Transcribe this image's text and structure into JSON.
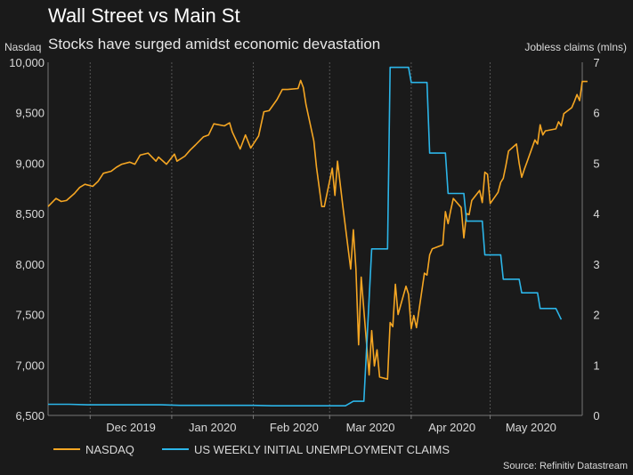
{
  "chart_data": {
    "type": "line",
    "title": "Wall Street vs Main St",
    "subtitle": "Stocks have surged amidst economic devastation",
    "y_left_label": "Nasdaq",
    "y_right_label": "Jobless claims (mlns)",
    "y_left_lim": [
      6500,
      10000
    ],
    "y_right_lim": [
      0,
      7
    ],
    "x_range": [
      "2019-11-15",
      "2020-06-05"
    ],
    "y_left_ticks": [
      "6,500",
      "7,000",
      "7,500",
      "8,000",
      "8,500",
      "9,000",
      "9,500",
      "10,000"
    ],
    "y_right_ticks": [
      "0",
      "1",
      "2",
      "3",
      "4",
      "5",
      "6",
      "7"
    ],
    "x_ticks": [
      {
        "date": "2019-12-01",
        "label": "Dec 2019"
      },
      {
        "date": "2020-01-01",
        "label": "Jan 2020"
      },
      {
        "date": "2020-02-01",
        "label": "Feb 2020"
      },
      {
        "date": "2020-03-01",
        "label": "Mar 2020"
      },
      {
        "date": "2020-04-01",
        "label": "Apr 2020"
      },
      {
        "date": "2020-05-01",
        "label": "May 2020"
      }
    ],
    "grid": "vertical",
    "series": [
      {
        "name": "NASDAQ",
        "axis": "left",
        "color": "#f5a623",
        "points": [
          [
            "2019-11-15",
            8570
          ],
          [
            "2019-11-18",
            8650
          ],
          [
            "2019-11-20",
            8620
          ],
          [
            "2019-11-22",
            8630
          ],
          [
            "2019-11-25",
            8700
          ],
          [
            "2019-11-27",
            8760
          ],
          [
            "2019-11-29",
            8790
          ],
          [
            "2019-12-02",
            8770
          ],
          [
            "2019-12-04",
            8820
          ],
          [
            "2019-12-06",
            8900
          ],
          [
            "2019-12-09",
            8920
          ],
          [
            "2019-12-11",
            8960
          ],
          [
            "2019-12-13",
            8990
          ],
          [
            "2019-12-16",
            9010
          ],
          [
            "2019-12-18",
            8990
          ],
          [
            "2019-12-20",
            9080
          ],
          [
            "2019-12-23",
            9100
          ],
          [
            "2019-12-26",
            9020
          ],
          [
            "2019-12-27",
            9060
          ],
          [
            "2019-12-30",
            8990
          ],
          [
            "2020-01-02",
            9090
          ],
          [
            "2020-01-03",
            9020
          ],
          [
            "2020-01-06",
            9070
          ],
          [
            "2020-01-08",
            9130
          ],
          [
            "2020-01-10",
            9180
          ],
          [
            "2020-01-13",
            9260
          ],
          [
            "2020-01-15",
            9280
          ],
          [
            "2020-01-17",
            9390
          ],
          [
            "2020-01-21",
            9370
          ],
          [
            "2020-01-23",
            9400
          ],
          [
            "2020-01-24",
            9310
          ],
          [
            "2020-01-27",
            9140
          ],
          [
            "2020-01-29",
            9280
          ],
          [
            "2020-01-31",
            9150
          ],
          [
            "2020-02-03",
            9270
          ],
          [
            "2020-02-05",
            9510
          ],
          [
            "2020-02-07",
            9520
          ],
          [
            "2020-02-10",
            9630
          ],
          [
            "2020-02-12",
            9730
          ],
          [
            "2020-02-14",
            9730
          ],
          [
            "2020-02-18",
            9740
          ],
          [
            "2020-02-19",
            9820
          ],
          [
            "2020-02-20",
            9750
          ],
          [
            "2020-02-21",
            9580
          ],
          [
            "2020-02-24",
            9220
          ],
          [
            "2020-02-25",
            8960
          ],
          [
            "2020-02-27",
            8570
          ],
          [
            "2020-02-28",
            8570
          ],
          [
            "2020-03-02",
            8950
          ],
          [
            "2020-03-03",
            8680
          ],
          [
            "2020-03-04",
            9020
          ],
          [
            "2020-03-06",
            8580
          ],
          [
            "2020-03-09",
            7950
          ],
          [
            "2020-03-10",
            8340
          ],
          [
            "2020-03-11",
            7950
          ],
          [
            "2020-03-12",
            7200
          ],
          [
            "2020-03-13",
            7870
          ],
          [
            "2020-03-16",
            6900
          ],
          [
            "2020-03-17",
            7340
          ],
          [
            "2020-03-18",
            6990
          ],
          [
            "2020-03-19",
            7150
          ],
          [
            "2020-03-20",
            6880
          ],
          [
            "2020-03-23",
            6860
          ],
          [
            "2020-03-24",
            7420
          ],
          [
            "2020-03-25",
            7380
          ],
          [
            "2020-03-26",
            7800
          ],
          [
            "2020-03-27",
            7500
          ],
          [
            "2020-03-30",
            7780
          ],
          [
            "2020-03-31",
            7700
          ],
          [
            "2020-04-01",
            7360
          ],
          [
            "2020-04-02",
            7490
          ],
          [
            "2020-04-03",
            7370
          ],
          [
            "2020-04-06",
            7910
          ],
          [
            "2020-04-07",
            7890
          ],
          [
            "2020-04-08",
            8090
          ],
          [
            "2020-04-09",
            8150
          ],
          [
            "2020-04-13",
            8190
          ],
          [
            "2020-04-14",
            8520
          ],
          [
            "2020-04-15",
            8400
          ],
          [
            "2020-04-16",
            8530
          ],
          [
            "2020-04-17",
            8650
          ],
          [
            "2020-04-20",
            8560
          ],
          [
            "2020-04-21",
            8260
          ],
          [
            "2020-04-22",
            8500
          ],
          [
            "2020-04-23",
            8490
          ],
          [
            "2020-04-24",
            8630
          ],
          [
            "2020-04-27",
            8730
          ],
          [
            "2020-04-28",
            8610
          ],
          [
            "2020-04-29",
            8910
          ],
          [
            "2020-04-30",
            8890
          ],
          [
            "2020-05-01",
            8600
          ],
          [
            "2020-05-04",
            8710
          ],
          [
            "2020-05-05",
            8810
          ],
          [
            "2020-05-06",
            8850
          ],
          [
            "2020-05-07",
            8980
          ],
          [
            "2020-05-08",
            9120
          ],
          [
            "2020-05-11",
            9190
          ],
          [
            "2020-05-12",
            9000
          ],
          [
            "2020-05-13",
            8860
          ],
          [
            "2020-05-14",
            8940
          ],
          [
            "2020-05-15",
            9010
          ],
          [
            "2020-05-18",
            9230
          ],
          [
            "2020-05-19",
            9190
          ],
          [
            "2020-05-20",
            9380
          ],
          [
            "2020-05-21",
            9280
          ],
          [
            "2020-05-22",
            9320
          ],
          [
            "2020-05-26",
            9340
          ],
          [
            "2020-05-27",
            9410
          ],
          [
            "2020-05-28",
            9370
          ],
          [
            "2020-05-29",
            9490
          ],
          [
            "2020-06-01",
            9550
          ],
          [
            "2020-06-02",
            9610
          ],
          [
            "2020-06-03",
            9680
          ],
          [
            "2020-06-04",
            9620
          ],
          [
            "2020-06-05",
            9810
          ],
          [
            "2020-06-07",
            9810
          ]
        ]
      },
      {
        "name": "US WEEKLY INITIAL UNEMPLOYMENT CLAIMS",
        "axis": "right",
        "color": "#2cb5e8",
        "step": true,
        "points": [
          [
            "2019-11-15",
            0.22
          ],
          [
            "2019-11-23",
            0.22
          ],
          [
            "2019-11-30",
            0.21
          ],
          [
            "2019-12-07",
            0.21
          ],
          [
            "2019-12-14",
            0.21
          ],
          [
            "2019-12-21",
            0.21
          ],
          [
            "2019-12-28",
            0.21
          ],
          [
            "2020-01-04",
            0.2
          ],
          [
            "2020-01-11",
            0.2
          ],
          [
            "2020-01-18",
            0.2
          ],
          [
            "2020-01-25",
            0.2
          ],
          [
            "2020-02-01",
            0.2
          ],
          [
            "2020-02-08",
            0.19
          ],
          [
            "2020-02-15",
            0.19
          ],
          [
            "2020-02-22",
            0.19
          ],
          [
            "2020-02-29",
            0.19
          ],
          [
            "2020-03-07",
            0.19
          ],
          [
            "2020-03-10",
            0.28
          ],
          [
            "2020-03-14",
            0.28
          ],
          [
            "2020-03-17",
            3.3
          ],
          [
            "2020-03-23",
            3.3
          ],
          [
            "2020-03-24",
            6.9
          ],
          [
            "2020-03-31",
            6.9
          ],
          [
            "2020-04-01",
            6.6
          ],
          [
            "2020-04-07",
            6.6
          ],
          [
            "2020-04-08",
            5.2
          ],
          [
            "2020-04-14",
            5.2
          ],
          [
            "2020-04-15",
            4.4
          ],
          [
            "2020-04-21",
            4.4
          ],
          [
            "2020-04-22",
            3.85
          ],
          [
            "2020-04-28",
            3.85
          ],
          [
            "2020-04-29",
            3.18
          ],
          [
            "2020-05-05",
            3.18
          ],
          [
            "2020-05-06",
            2.7
          ],
          [
            "2020-05-12",
            2.7
          ],
          [
            "2020-05-13",
            2.43
          ],
          [
            "2020-05-19",
            2.43
          ],
          [
            "2020-05-20",
            2.12
          ],
          [
            "2020-05-26",
            2.12
          ],
          [
            "2020-05-28",
            1.9
          ]
        ]
      }
    ],
    "source": "Source: Refinitiv Datastream"
  }
}
